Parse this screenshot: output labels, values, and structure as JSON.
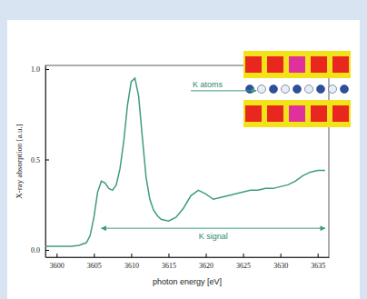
{
  "chart_data": {
    "type": "line",
    "x_label": "photon energy [eV]",
    "y_label": "X-ray absorption [a.u.]",
    "x": [
      3598.5,
      3600,
      3602,
      3603,
      3604,
      3604.5,
      3605,
      3605.5,
      3606,
      3606.5,
      3607,
      3607.5,
      3608,
      3608.5,
      3609,
      3609.5,
      3610,
      3610.5,
      3611,
      3611.5,
      3612,
      3612.5,
      3613,
      3613.5,
      3614,
      3615,
      3616,
      3617,
      3618,
      3619,
      3620,
      3621,
      3622,
      3623,
      3624,
      3625,
      3626,
      3627,
      3628,
      3629,
      3630,
      3631,
      3632,
      3633,
      3634,
      3635,
      3636
    ],
    "values": [
      0.02,
      0.02,
      0.02,
      0.025,
      0.04,
      0.08,
      0.18,
      0.32,
      0.38,
      0.37,
      0.34,
      0.33,
      0.36,
      0.45,
      0.6,
      0.8,
      0.93,
      0.95,
      0.85,
      0.62,
      0.4,
      0.28,
      0.22,
      0.19,
      0.17,
      0.16,
      0.18,
      0.23,
      0.3,
      0.33,
      0.31,
      0.28,
      0.29,
      0.3,
      0.31,
      0.32,
      0.33,
      0.33,
      0.34,
      0.34,
      0.35,
      0.36,
      0.38,
      0.41,
      0.43,
      0.44,
      0.44
    ],
    "color": "#3e9c7e",
    "xlim": [
      3598.5,
      3636.5
    ],
    "ylim": [
      -0.04,
      1.02
    ],
    "xticks": [
      3600,
      3605,
      3610,
      3615,
      3620,
      3625,
      3630,
      3635
    ],
    "yticks": [
      {
        "value": 0,
        "label": "0.0"
      },
      {
        "value": 0.5,
        "label": "0.5"
      },
      {
        "value": 1,
        "label": "1.0"
      }
    ],
    "grid": false,
    "annotations": [
      {
        "text": "K atoms",
        "x": 3618,
        "y": 0.88
      },
      {
        "text": "K signal",
        "x": [
          3606,
          3636
        ],
        "y": 0.12
      }
    ]
  }
}
